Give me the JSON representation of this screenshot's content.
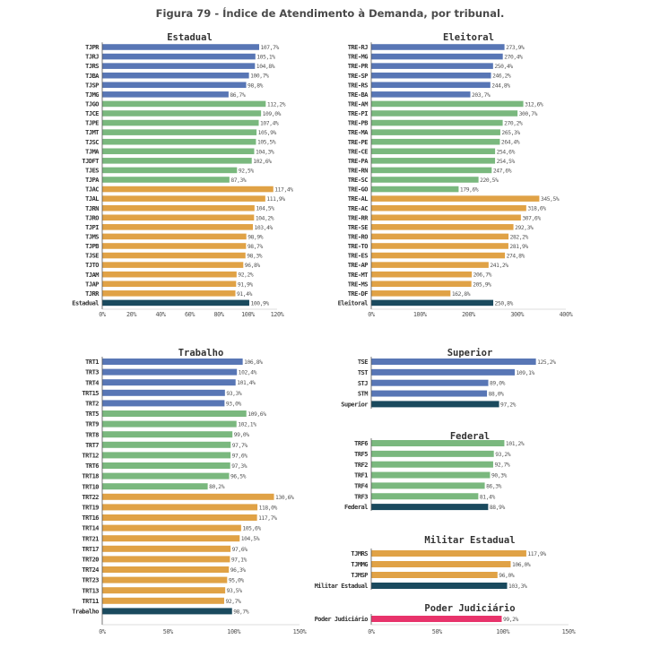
{
  "figure_title": "Figura 79 - Índice de Atendimento à Demanda, por tribunal.",
  "colors": {
    "blue": "#5876b5",
    "green": "#7ab87e",
    "orange": "#e0a246",
    "dark": "#1a4a5e",
    "pink": "#e8336b",
    "axis": "#555555"
  },
  "chart_data": [
    {
      "type": "bar",
      "title": "Estadual",
      "xlim": [
        0,
        120
      ],
      "ticks": [
        "0%",
        "20%",
        "40%",
        "60%",
        "80%",
        "100%",
        "120%"
      ],
      "ticks_values": [
        0,
        20,
        40,
        60,
        80,
        100,
        120
      ],
      "bars": [
        {
          "label": "TJPR",
          "value": 107.7,
          "text": "107,7%",
          "color": "blue"
        },
        {
          "label": "TJRJ",
          "value": 105.1,
          "text": "105,1%",
          "color": "blue"
        },
        {
          "label": "TJRS",
          "value": 104.8,
          "text": "104,8%",
          "color": "blue"
        },
        {
          "label": "TJBA",
          "value": 100.7,
          "text": "100,7%",
          "color": "blue"
        },
        {
          "label": "TJSP",
          "value": 98.8,
          "text": "98,8%",
          "color": "blue"
        },
        {
          "label": "TJMG",
          "value": 86.7,
          "text": "86,7%",
          "color": "blue"
        },
        {
          "label": "TJGO",
          "value": 112.2,
          "text": "112,2%",
          "color": "green"
        },
        {
          "label": "TJCE",
          "value": 109.0,
          "text": "109,0%",
          "color": "green"
        },
        {
          "label": "TJPE",
          "value": 107.4,
          "text": "107,4%",
          "color": "green"
        },
        {
          "label": "TJMT",
          "value": 105.9,
          "text": "105,9%",
          "color": "green"
        },
        {
          "label": "TJSC",
          "value": 105.5,
          "text": "105,5%",
          "color": "green"
        },
        {
          "label": "TJMA",
          "value": 104.3,
          "text": "104,3%",
          "color": "green"
        },
        {
          "label": "TJDFT",
          "value": 102.6,
          "text": "102,6%",
          "color": "green"
        },
        {
          "label": "TJES",
          "value": 92.5,
          "text": "92,5%",
          "color": "green"
        },
        {
          "label": "TJPA",
          "value": 87.3,
          "text": "87,3%",
          "color": "green"
        },
        {
          "label": "TJAC",
          "value": 117.4,
          "text": "117,4%",
          "color": "orange"
        },
        {
          "label": "TJAL",
          "value": 111.9,
          "text": "111,9%",
          "color": "orange"
        },
        {
          "label": "TJRN",
          "value": 104.5,
          "text": "104,5%",
          "color": "orange"
        },
        {
          "label": "TJRO",
          "value": 104.2,
          "text": "104,2%",
          "color": "orange"
        },
        {
          "label": "TJPI",
          "value": 103.4,
          "text": "103,4%",
          "color": "orange"
        },
        {
          "label": "TJMS",
          "value": 98.9,
          "text": "98,9%",
          "color": "orange"
        },
        {
          "label": "TJPB",
          "value": 98.7,
          "text": "98,7%",
          "color": "orange"
        },
        {
          "label": "TJSE",
          "value": 98.3,
          "text": "98,3%",
          "color": "orange"
        },
        {
          "label": "TJTO",
          "value": 96.8,
          "text": "96,8%",
          "color": "orange"
        },
        {
          "label": "TJAM",
          "value": 92.2,
          "text": "92,2%",
          "color": "orange"
        },
        {
          "label": "TJAP",
          "value": 91.9,
          "text": "91,9%",
          "color": "orange"
        },
        {
          "label": "TJRR",
          "value": 91.4,
          "text": "91,4%",
          "color": "orange"
        },
        {
          "label": "Estadual",
          "value": 100.9,
          "text": "100,9%",
          "color": "dark"
        }
      ]
    },
    {
      "type": "bar",
      "title": "Eleitoral",
      "xlim": [
        0,
        400
      ],
      "ticks": [
        "0%",
        "100%",
        "200%",
        "300%",
        "400%"
      ],
      "ticks_values": [
        0,
        100,
        200,
        300,
        400
      ],
      "bars": [
        {
          "label": "TRE-RJ",
          "value": 273.9,
          "text": "273,9%",
          "color": "blue"
        },
        {
          "label": "TRE-MG",
          "value": 270.4,
          "text": "270,4%",
          "color": "blue"
        },
        {
          "label": "TRE-PR",
          "value": 250.4,
          "text": "250,4%",
          "color": "blue"
        },
        {
          "label": "TRE-SP",
          "value": 246.2,
          "text": "246,2%",
          "color": "blue"
        },
        {
          "label": "TRE-RS",
          "value": 244.8,
          "text": "244,8%",
          "color": "blue"
        },
        {
          "label": "TRE-BA",
          "value": 203.7,
          "text": "203,7%",
          "color": "blue"
        },
        {
          "label": "TRE-AM",
          "value": 312.6,
          "text": "312,6%",
          "color": "green"
        },
        {
          "label": "TRE-PI",
          "value": 300.7,
          "text": "300,7%",
          "color": "green"
        },
        {
          "label": "TRE-PB",
          "value": 270.2,
          "text": "270,2%",
          "color": "green"
        },
        {
          "label": "TRE-MA",
          "value": 265.3,
          "text": "265,3%",
          "color": "green"
        },
        {
          "label": "TRE-PE",
          "value": 264.4,
          "text": "264,4%",
          "color": "green"
        },
        {
          "label": "TRE-CE",
          "value": 254.6,
          "text": "254,6%",
          "color": "green"
        },
        {
          "label": "TRE-PA",
          "value": 254.5,
          "text": "254,5%",
          "color": "green"
        },
        {
          "label": "TRE-RN",
          "value": 247.6,
          "text": "247,6%",
          "color": "green"
        },
        {
          "label": "TRE-SC",
          "value": 220.5,
          "text": "220,5%",
          "color": "green"
        },
        {
          "label": "TRE-GO",
          "value": 179.6,
          "text": "179,6%",
          "color": "green"
        },
        {
          "label": "TRE-AL",
          "value": 345.5,
          "text": "345,5%",
          "color": "orange"
        },
        {
          "label": "TRE-AC",
          "value": 318.6,
          "text": "318,6%",
          "color": "orange"
        },
        {
          "label": "TRE-RR",
          "value": 307.6,
          "text": "307,6%",
          "color": "orange"
        },
        {
          "label": "TRE-SE",
          "value": 292.3,
          "text": "292,3%",
          "color": "orange"
        },
        {
          "label": "TRE-RO",
          "value": 282.2,
          "text": "282,2%",
          "color": "orange"
        },
        {
          "label": "TRE-TO",
          "value": 281.9,
          "text": "281,9%",
          "color": "orange"
        },
        {
          "label": "TRE-ES",
          "value": 274.8,
          "text": "274,8%",
          "color": "orange"
        },
        {
          "label": "TRE-AP",
          "value": 241.2,
          "text": "241,2%",
          "color": "orange"
        },
        {
          "label": "TRE-MT",
          "value": 206.7,
          "text": "206,7%",
          "color": "orange"
        },
        {
          "label": "TRE-MS",
          "value": 205.9,
          "text": "205,9%",
          "color": "orange"
        },
        {
          "label": "TRE-DF",
          "value": 162.8,
          "text": "162,8%",
          "color": "orange"
        },
        {
          "label": "Eleitoral",
          "value": 250.8,
          "text": "250,8%",
          "color": "dark"
        }
      ]
    },
    {
      "type": "bar",
      "title": "Trabalho",
      "xlim": [
        0,
        150
      ],
      "ticks": [
        "0%",
        "50%",
        "100%",
        "150%"
      ],
      "ticks_values": [
        0,
        50,
        100,
        150
      ],
      "bars": [
        {
          "label": "TRT1",
          "value": 106.8,
          "text": "106,8%",
          "color": "blue"
        },
        {
          "label": "TRT3",
          "value": 102.4,
          "text": "102,4%",
          "color": "blue"
        },
        {
          "label": "TRT4",
          "value": 101.4,
          "text": "101,4%",
          "color": "blue"
        },
        {
          "label": "TRT15",
          "value": 93.3,
          "text": "93,3%",
          "color": "blue"
        },
        {
          "label": "TRT2",
          "value": 93.0,
          "text": "93,0%",
          "color": "blue"
        },
        {
          "label": "TRT5",
          "value": 109.6,
          "text": "109,6%",
          "color": "green"
        },
        {
          "label": "TRT9",
          "value": 102.1,
          "text": "102,1%",
          "color": "green"
        },
        {
          "label": "TRT8",
          "value": 99.0,
          "text": "99,0%",
          "color": "green"
        },
        {
          "label": "TRT7",
          "value": 97.7,
          "text": "97,7%",
          "color": "green"
        },
        {
          "label": "TRT12",
          "value": 97.6,
          "text": "97,6%",
          "color": "green"
        },
        {
          "label": "TRT6",
          "value": 97.3,
          "text": "97,3%",
          "color": "green"
        },
        {
          "label": "TRT18",
          "value": 96.5,
          "text": "96,5%",
          "color": "green"
        },
        {
          "label": "TRT10",
          "value": 80.2,
          "text": "80,2%",
          "color": "green"
        },
        {
          "label": "TRT22",
          "value": 130.6,
          "text": "130,6%",
          "color": "orange"
        },
        {
          "label": "TRT19",
          "value": 118.0,
          "text": "118,0%",
          "color": "orange"
        },
        {
          "label": "TRT16",
          "value": 117.7,
          "text": "117,7%",
          "color": "orange"
        },
        {
          "label": "TRT14",
          "value": 105.6,
          "text": "105,6%",
          "color": "orange"
        },
        {
          "label": "TRT21",
          "value": 104.5,
          "text": "104,5%",
          "color": "orange"
        },
        {
          "label": "TRT17",
          "value": 97.6,
          "text": "97,6%",
          "color": "orange"
        },
        {
          "label": "TRT20",
          "value": 97.1,
          "text": "97,1%",
          "color": "orange"
        },
        {
          "label": "TRT24",
          "value": 96.3,
          "text": "96,3%",
          "color": "orange"
        },
        {
          "label": "TRT23",
          "value": 95.0,
          "text": "95,0%",
          "color": "orange"
        },
        {
          "label": "TRT13",
          "value": 93.5,
          "text": "93,5%",
          "color": "orange"
        },
        {
          "label": "TRT11",
          "value": 92.7,
          "text": "92,7%",
          "color": "orange"
        },
        {
          "label": "Trabalho",
          "value": 98.7,
          "text": "98,7%",
          "color": "dark"
        }
      ]
    },
    {
      "type": "bar",
      "title": "Superior",
      "xlim": [
        0,
        150
      ],
      "bars": [
        {
          "label": "TSE",
          "value": 125.2,
          "text": "125,2%",
          "color": "blue"
        },
        {
          "label": "TST",
          "value": 109.1,
          "text": "109,1%",
          "color": "blue"
        },
        {
          "label": "STJ",
          "value": 89.0,
          "text": "89,0%",
          "color": "blue"
        },
        {
          "label": "STM",
          "value": 88.0,
          "text": "88,0%",
          "color": "blue"
        },
        {
          "label": "Superior",
          "value": 97.2,
          "text": "97,2%",
          "color": "dark"
        }
      ]
    },
    {
      "type": "bar",
      "title": "Federal",
      "xlim": [
        0,
        150
      ],
      "bars": [
        {
          "label": "TRF6",
          "value": 101.2,
          "text": "101,2%",
          "color": "green"
        },
        {
          "label": "TRF5",
          "value": 93.2,
          "text": "93,2%",
          "color": "green"
        },
        {
          "label": "TRF2",
          "value": 92.7,
          "text": "92,7%",
          "color": "green"
        },
        {
          "label": "TRF1",
          "value": 90.3,
          "text": "90,3%",
          "color": "green"
        },
        {
          "label": "TRF4",
          "value": 86.3,
          "text": "86,3%",
          "color": "green"
        },
        {
          "label": "TRF3",
          "value": 81.4,
          "text": "81,4%",
          "color": "green"
        },
        {
          "label": "Federal",
          "value": 88.9,
          "text": "88,9%",
          "color": "dark"
        }
      ]
    },
    {
      "type": "bar",
      "title": "Militar Estadual",
      "xlim": [
        0,
        150
      ],
      "bars": [
        {
          "label": "TJMRS",
          "value": 117.9,
          "text": "117,9%",
          "color": "orange"
        },
        {
          "label": "TJMMG",
          "value": 106.0,
          "text": "106,0%",
          "color": "orange"
        },
        {
          "label": "TJMSP",
          "value": 96.0,
          "text": "96,0%",
          "color": "orange"
        },
        {
          "label": "Militar Estadual",
          "value": 103.3,
          "text": "103,3%",
          "color": "dark"
        }
      ]
    },
    {
      "type": "bar",
      "title": "Poder Judiciário",
      "xlim": [
        0,
        150
      ],
      "ticks": [
        "0%",
        "50%",
        "100%",
        "150%"
      ],
      "ticks_values": [
        0,
        50,
        100,
        150
      ],
      "bars": [
        {
          "label": "Poder Judiciário",
          "value": 99.2,
          "text": "99,2%",
          "color": "pink"
        }
      ]
    }
  ]
}
